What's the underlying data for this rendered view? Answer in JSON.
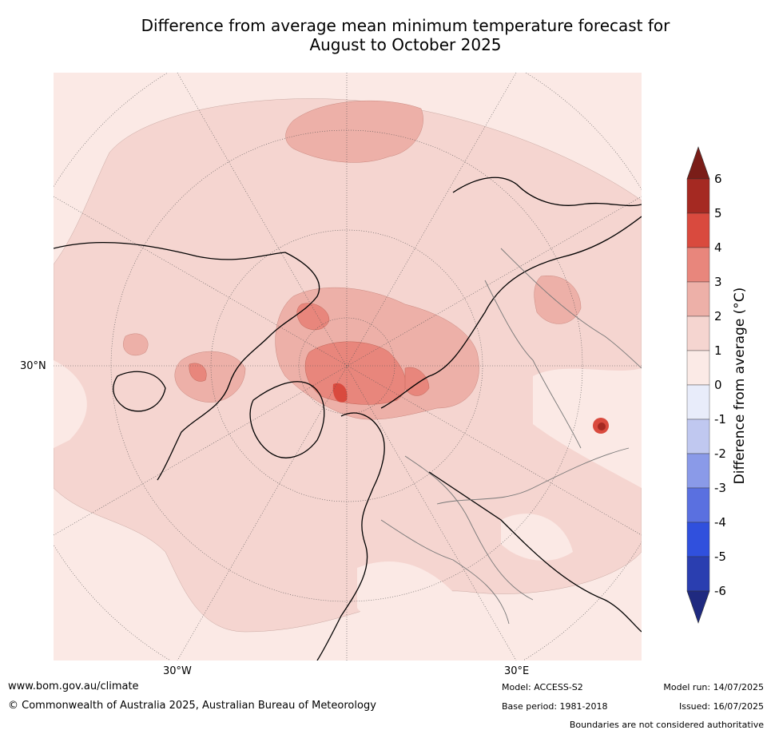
{
  "title": {
    "line1": "Difference from average mean minimum temperature forecast for",
    "line2": "August to October 2025"
  },
  "map": {
    "lat_label": "30°N",
    "lon_labels": {
      "west": "30°W",
      "east": "30°E"
    }
  },
  "colorbar": {
    "label": "Difference from average (°C)",
    "ticks": [
      "6",
      "5",
      "4",
      "3",
      "2",
      "1",
      "0",
      "-1",
      "-2",
      "-3",
      "-4",
      "-5",
      "-6"
    ],
    "colors": [
      "#7a1d18",
      "#a52922",
      "#d94a3e",
      "#e8867c",
      "#edb0a8",
      "#f5d5d0",
      "#fbeae6",
      "#e8ecfa",
      "#c0c8f0",
      "#8a9ae8",
      "#5a70e0",
      "#3050dd",
      "#2a3eb0",
      "#1f2a80"
    ]
  },
  "footer": {
    "website": "www.bom.gov.au/climate",
    "copyright": "© Commonwealth of Australia 2025, Australian Bureau of Meteorology",
    "model": "Model: ACCESS-S2",
    "base_period": "Base period: 1981-2018",
    "model_run": "Model run: 14/07/2025",
    "issued": "Issued: 16/07/2025",
    "disclaimer": "Boundaries are not considered authoritative"
  }
}
